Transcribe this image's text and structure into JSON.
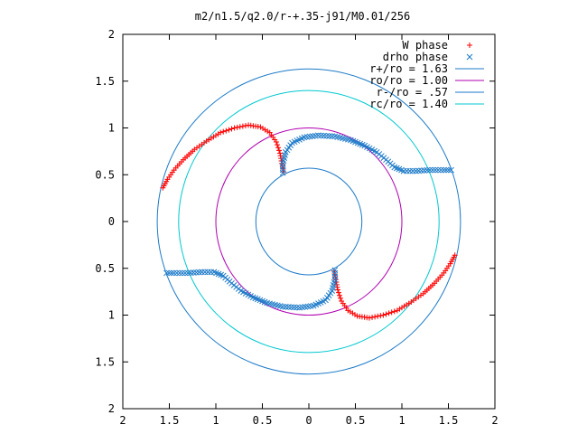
{
  "chart_data": {
    "type": "scatter",
    "title": "m2/n1.5/q2.0/r-+.35-j91/M0.01/256",
    "xlabel": "",
    "ylabel": "",
    "xlim": [
      -2,
      2
    ],
    "ylim": [
      -2,
      2
    ],
    "xticks": [
      -2,
      -1.5,
      -1,
      -0.5,
      0,
      0.5,
      1,
      1.5,
      2
    ],
    "yticks": [
      -2,
      -1.5,
      -1,
      -0.5,
      0,
      0.5,
      1,
      1.5,
      2
    ],
    "xtick_labels": [
      "2",
      "1.5",
      "1",
      "0.5",
      "0",
      "0.5",
      "1",
      "1.5",
      "2"
    ],
    "ytick_labels": [
      "2",
      "1.5",
      "1",
      "0.5",
      "0",
      "0.5",
      "1",
      "1.5",
      "2"
    ],
    "grid": false,
    "legend_position": "top-right",
    "circles": [
      {
        "name": "r+/ro = 1.63",
        "radius": 1.63,
        "color": "#1c7ac8"
      },
      {
        "name": "ro/ro = 1.00",
        "radius": 1.0,
        "color": "#b000b0"
      },
      {
        "name": "r-/ro = .57",
        "radius": 0.57,
        "color": "#1c7ac8"
      },
      {
        "name": "rc/ro = 1.40",
        "radius": 1.4,
        "color": "#00c8d0"
      }
    ],
    "series": [
      {
        "name": "W phase",
        "marker": "+",
        "color": "#ff0000",
        "segments": [
          [
            [
              -1.57,
              0.36
            ],
            [
              -1.52,
              0.45
            ],
            [
              -1.45,
              0.55
            ],
            [
              -1.35,
              0.66
            ],
            [
              -1.23,
              0.77
            ],
            [
              -1.1,
              0.86
            ],
            [
              -0.95,
              0.95
            ],
            [
              -0.8,
              1.0
            ],
            [
              -0.65,
              1.03
            ],
            [
              -0.52,
              1.01
            ],
            [
              -0.42,
              0.95
            ],
            [
              -0.35,
              0.85
            ],
            [
              -0.31,
              0.73
            ],
            [
              -0.29,
              0.62
            ],
            [
              -0.27,
              0.53
            ]
          ],
          [
            [
              1.57,
              -0.36
            ],
            [
              1.52,
              -0.45
            ],
            [
              1.45,
              -0.55
            ],
            [
              1.35,
              -0.66
            ],
            [
              1.23,
              -0.77
            ],
            [
              1.1,
              -0.86
            ],
            [
              0.95,
              -0.95
            ],
            [
              0.8,
              -1.0
            ],
            [
              0.65,
              -1.03
            ],
            [
              0.52,
              -1.01
            ],
            [
              0.42,
              -0.95
            ],
            [
              0.35,
              -0.85
            ],
            [
              0.31,
              -0.73
            ],
            [
              0.29,
              -0.62
            ],
            [
              0.27,
              -0.53
            ]
          ]
        ]
      },
      {
        "name": "drho phase",
        "marker": "x",
        "color": "#1c7ac8",
        "segments": [
          [
            [
              -0.28,
              0.52
            ],
            [
              -0.28,
              0.62
            ],
            [
              -0.25,
              0.74
            ],
            [
              -0.18,
              0.84
            ],
            [
              -0.05,
              0.9
            ],
            [
              0.1,
              0.92
            ],
            [
              0.28,
              0.91
            ],
            [
              0.45,
              0.87
            ],
            [
              0.6,
              0.81
            ],
            [
              0.73,
              0.74
            ],
            [
              0.83,
              0.66
            ],
            [
              0.92,
              0.58
            ],
            [
              1.02,
              0.54
            ],
            [
              1.15,
              0.54
            ],
            [
              1.3,
              0.55
            ],
            [
              1.45,
              0.55
            ],
            [
              1.53,
              0.55
            ]
          ],
          [
            [
              0.28,
              -0.52
            ],
            [
              0.28,
              -0.62
            ],
            [
              0.25,
              -0.74
            ],
            [
              0.18,
              -0.84
            ],
            [
              0.05,
              -0.9
            ],
            [
              -0.1,
              -0.92
            ],
            [
              -0.28,
              -0.91
            ],
            [
              -0.45,
              -0.87
            ],
            [
              -0.6,
              -0.81
            ],
            [
              -0.73,
              -0.74
            ],
            [
              -0.83,
              -0.66
            ],
            [
              -0.92,
              -0.58
            ],
            [
              -1.02,
              -0.54
            ],
            [
              -1.15,
              -0.54
            ],
            [
              -1.3,
              -0.55
            ],
            [
              -1.45,
              -0.55
            ],
            [
              -1.53,
              -0.55
            ]
          ]
        ]
      }
    ]
  }
}
